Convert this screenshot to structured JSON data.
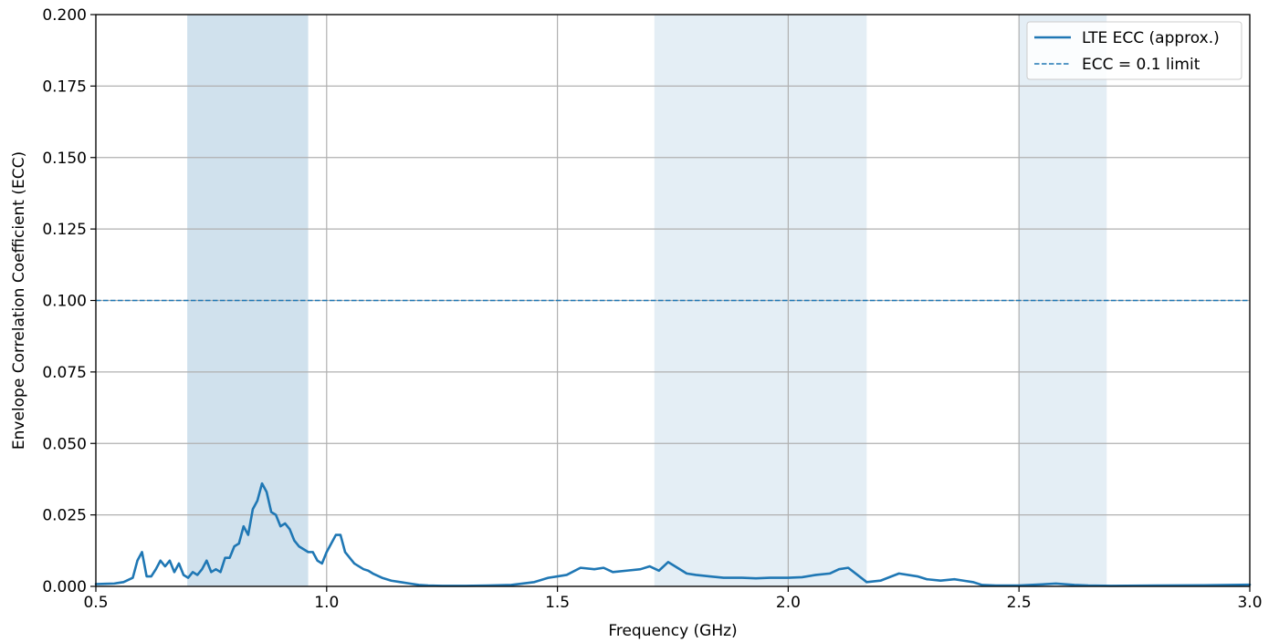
{
  "chart_data": {
    "type": "line",
    "title": "",
    "xlabel": "Frequency (GHz)",
    "ylabel": "Envelope Correlation Coefficient (ECC)",
    "xlim": [
      0.5,
      3.0
    ],
    "ylim": [
      0.0,
      0.2
    ],
    "x_ticks": [
      "0.5",
      "1.0",
      "1.5",
      "2.0",
      "2.5",
      "3.0"
    ],
    "y_ticks": [
      "0.000",
      "0.025",
      "0.050",
      "0.075",
      "0.100",
      "0.125",
      "0.150",
      "0.175",
      "0.200"
    ],
    "grid": true,
    "legend_position": "top-right",
    "shaded_bands": [
      {
        "x0": 0.698,
        "x1": 0.96,
        "color": "#d0e1ed"
      },
      {
        "x0": 1.71,
        "x1": 2.17,
        "color": "#e4eef5"
      },
      {
        "x0": 2.5,
        "x1": 2.69,
        "color": "#e4eef5"
      }
    ],
    "threshold": {
      "name": "ECC = 0.1 limit",
      "y": 0.1,
      "color": "#1f77b4",
      "style": "dashed"
    },
    "series": [
      {
        "name": "LTE ECC (approx.)",
        "color": "#1f77b4",
        "x": [
          0.5,
          0.52,
          0.54,
          0.56,
          0.58,
          0.59,
          0.6,
          0.61,
          0.62,
          0.63,
          0.64,
          0.65,
          0.66,
          0.67,
          0.68,
          0.69,
          0.7,
          0.71,
          0.72,
          0.73,
          0.74,
          0.75,
          0.76,
          0.77,
          0.78,
          0.79,
          0.8,
          0.81,
          0.82,
          0.83,
          0.84,
          0.85,
          0.86,
          0.87,
          0.88,
          0.89,
          0.9,
          0.91,
          0.92,
          0.93,
          0.94,
          0.95,
          0.96,
          0.97,
          0.98,
          0.99,
          1.0,
          1.01,
          1.02,
          1.03,
          1.04,
          1.05,
          1.06,
          1.07,
          1.08,
          1.09,
          1.1,
          1.12,
          1.14,
          1.16,
          1.18,
          1.2,
          1.22,
          1.25,
          1.3,
          1.35,
          1.4,
          1.45,
          1.48,
          1.5,
          1.52,
          1.55,
          1.58,
          1.6,
          1.62,
          1.65,
          1.68,
          1.7,
          1.72,
          1.74,
          1.76,
          1.78,
          1.8,
          1.83,
          1.86,
          1.9,
          1.93,
          1.96,
          2.0,
          2.03,
          2.06,
          2.09,
          2.11,
          2.13,
          2.15,
          2.17,
          2.2,
          2.24,
          2.28,
          2.3,
          2.33,
          2.36,
          2.38,
          2.4,
          2.42,
          2.45,
          2.5,
          2.55,
          2.58,
          2.62,
          2.65,
          2.7,
          2.8,
          2.9,
          3.0
        ],
        "y": [
          0.0008,
          0.0009,
          0.001,
          0.0015,
          0.003,
          0.009,
          0.012,
          0.0035,
          0.0035,
          0.006,
          0.009,
          0.007,
          0.009,
          0.005,
          0.008,
          0.004,
          0.003,
          0.005,
          0.004,
          0.006,
          0.009,
          0.005,
          0.006,
          0.005,
          0.01,
          0.01,
          0.014,
          0.015,
          0.021,
          0.018,
          0.027,
          0.03,
          0.036,
          0.033,
          0.026,
          0.025,
          0.021,
          0.022,
          0.02,
          0.016,
          0.014,
          0.013,
          0.012,
          0.012,
          0.009,
          0.008,
          0.012,
          0.015,
          0.018,
          0.018,
          0.012,
          0.01,
          0.008,
          0.007,
          0.006,
          0.0055,
          0.0045,
          0.003,
          0.002,
          0.0015,
          0.001,
          0.0005,
          0.0003,
          0.0002,
          0.0002,
          0.0003,
          0.0005,
          0.0015,
          0.003,
          0.0035,
          0.004,
          0.0065,
          0.006,
          0.0065,
          0.005,
          0.0055,
          0.006,
          0.007,
          0.0055,
          0.0085,
          0.0065,
          0.0045,
          0.004,
          0.0035,
          0.003,
          0.003,
          0.0028,
          0.003,
          0.003,
          0.0032,
          0.004,
          0.0045,
          0.006,
          0.0065,
          0.004,
          0.0015,
          0.002,
          0.0045,
          0.0035,
          0.0025,
          0.002,
          0.0025,
          0.002,
          0.0015,
          0.0005,
          0.0003,
          0.0003,
          0.0007,
          0.001,
          0.0005,
          0.0003,
          0.0002,
          0.0003,
          0.0004,
          0.0006
        ]
      }
    ]
  }
}
